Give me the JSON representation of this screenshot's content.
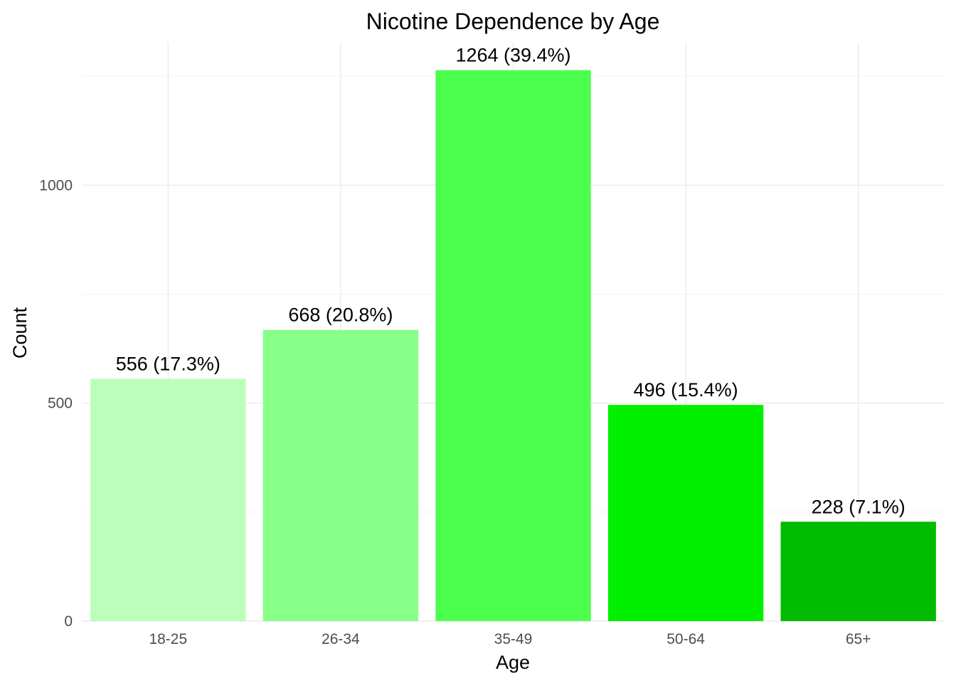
{
  "chart_data": {
    "type": "bar",
    "title": "Nicotine Dependence by Age",
    "xlabel": "Age",
    "ylabel": "Count",
    "categories": [
      "18-25",
      "26-34",
      "35-49",
      "50-64",
      "65+"
    ],
    "values": [
      556,
      668,
      1264,
      496,
      228
    ],
    "data_labels": [
      "556 (17.3%)",
      "668 (20.8%)",
      "1264 (39.4%)",
      "496 (15.4%)",
      "228 (7.1%)"
    ],
    "bar_colors": [
      "#BBFFBB",
      "#88FF88",
      "#4DFF4D",
      "#00F000",
      "#00BB00"
    ],
    "y_ticks": [
      0,
      500,
      1000
    ],
    "y_tick_labels": [
      "0",
      "500",
      "1000"
    ],
    "ylim": [
      0,
      1327
    ],
    "grid": true,
    "legend": "none"
  }
}
